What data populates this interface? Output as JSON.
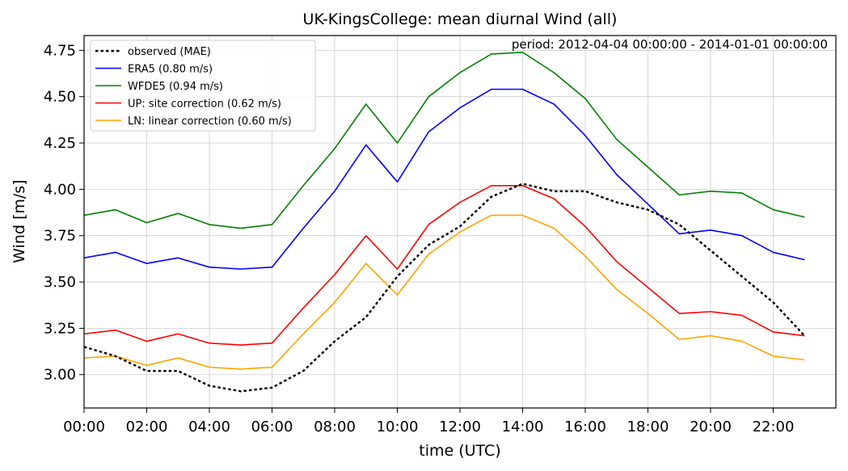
{
  "chart_data": {
    "type": "line",
    "title": "UK-KingsCollege: mean diurnal Wind (all)",
    "period_label": "period: 2012-04-04 00:00:00 - 2014-01-01 00:00:00",
    "xlabel": "time (UTC)",
    "ylabel": "Wind [m/s]",
    "xlim": [
      0,
      24
    ],
    "ylim": [
      2.82,
      4.83
    ],
    "grid": true,
    "legend_position": "top-left",
    "x_ticks": [
      0,
      2,
      4,
      6,
      8,
      10,
      12,
      14,
      16,
      18,
      20,
      22
    ],
    "x_tick_labels": [
      "00:00",
      "02:00",
      "04:00",
      "06:00",
      "08:00",
      "10:00",
      "12:00",
      "14:00",
      "16:00",
      "18:00",
      "20:00",
      "22:00"
    ],
    "y_ticks": [
      3.0,
      3.25,
      3.5,
      3.75,
      4.0,
      4.25,
      4.5,
      4.75
    ],
    "y_tick_labels": [
      "3.00",
      "3.25",
      "3.50",
      "3.75",
      "4.00",
      "4.25",
      "4.50",
      "4.75"
    ],
    "x": [
      0,
      1,
      2,
      3,
      4,
      5,
      6,
      7,
      8,
      9,
      10,
      11,
      12,
      13,
      14,
      15,
      16,
      17,
      18,
      19,
      20,
      21,
      22,
      23
    ],
    "series": [
      {
        "name": "observed (MAE)",
        "color": "#000000",
        "dashed": true,
        "values": [
          3.15,
          3.1,
          3.02,
          3.02,
          2.94,
          2.91,
          2.93,
          3.02,
          3.18,
          3.31,
          3.53,
          3.7,
          3.8,
          3.96,
          4.03,
          3.99,
          3.99,
          3.93,
          3.89,
          3.81,
          3.67,
          3.53,
          3.39,
          3.21
        ]
      },
      {
        "name": "ERA5 (0.80 m/s)",
        "color": "#0000ff",
        "dashed": false,
        "values": [
          3.63,
          3.66,
          3.6,
          3.63,
          3.58,
          3.57,
          3.58,
          3.79,
          3.99,
          4.24,
          4.04,
          4.31,
          4.44,
          4.54,
          4.54,
          4.46,
          4.29,
          4.08,
          3.92,
          3.76,
          3.78,
          3.75,
          3.66,
          3.62
        ]
      },
      {
        "name": "WFDE5 (0.94 m/s)",
        "color": "#008000",
        "dashed": false,
        "values": [
          3.86,
          3.89,
          3.82,
          3.87,
          3.81,
          3.79,
          3.81,
          4.02,
          4.22,
          4.46,
          4.25,
          4.5,
          4.63,
          4.73,
          4.74,
          4.63,
          4.49,
          4.27,
          4.12,
          3.97,
          3.99,
          3.98,
          3.89,
          3.85
        ]
      },
      {
        "name": "UP: site correction (0.62 m/s)",
        "color": "#ff0000",
        "dashed": false,
        "values": [
          3.22,
          3.24,
          3.18,
          3.22,
          3.17,
          3.16,
          3.17,
          3.36,
          3.54,
          3.75,
          3.57,
          3.81,
          3.93,
          4.02,
          4.02,
          3.95,
          3.8,
          3.61,
          3.47,
          3.33,
          3.34,
          3.32,
          3.23,
          3.21
        ]
      },
      {
        "name": "LN: linear correction (0.60 m/s)",
        "color": "#ffa500",
        "dashed": false,
        "values": [
          3.09,
          3.1,
          3.05,
          3.09,
          3.04,
          3.03,
          3.04,
          3.22,
          3.39,
          3.6,
          3.43,
          3.65,
          3.77,
          3.86,
          3.86,
          3.79,
          3.64,
          3.46,
          3.33,
          3.19,
          3.21,
          3.18,
          3.1,
          3.08
        ]
      }
    ]
  }
}
